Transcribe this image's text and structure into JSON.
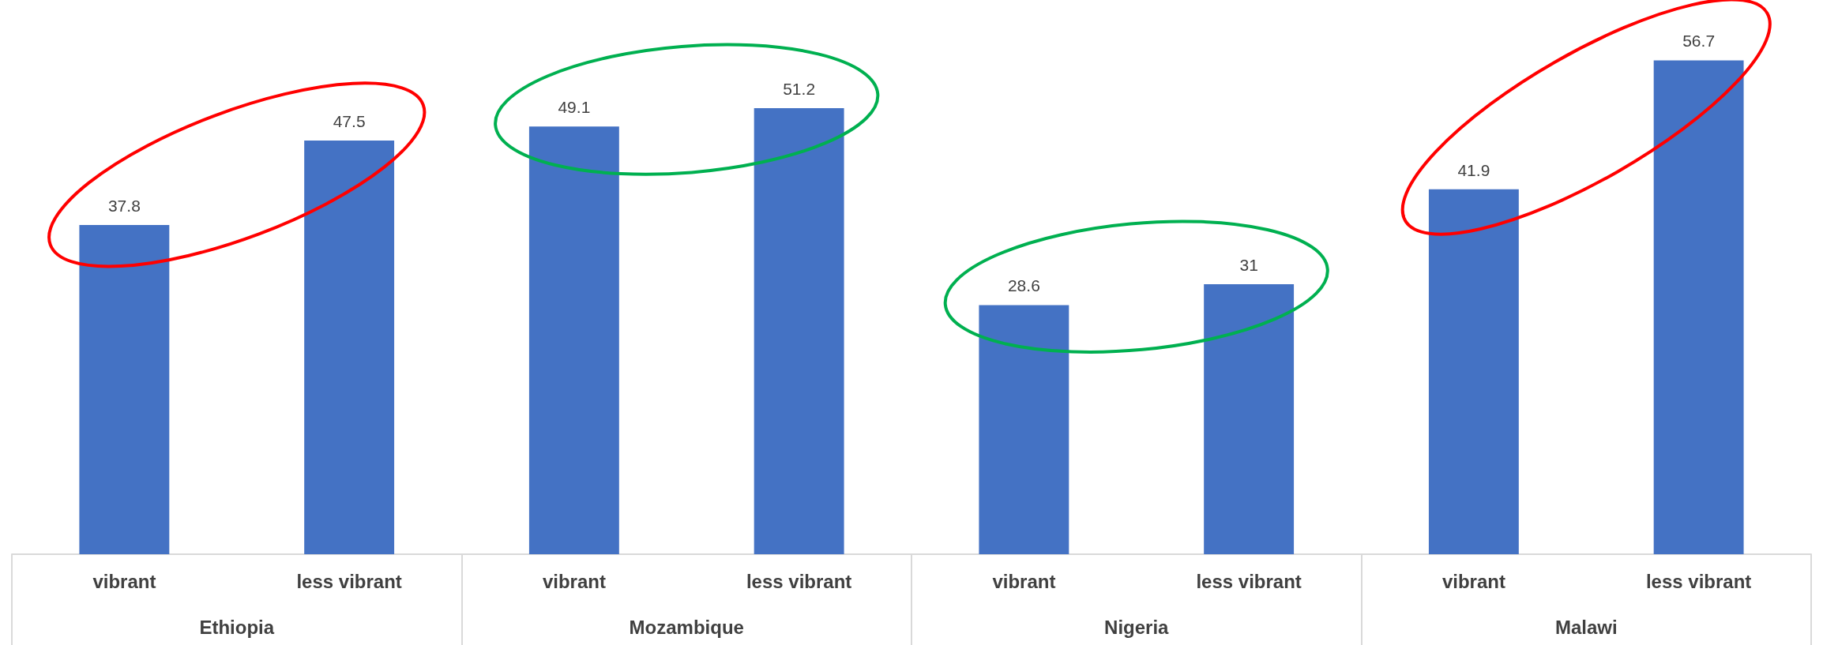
{
  "chart_data": {
    "type": "bar",
    "categories": [
      "vibrant",
      "less vibrant",
      "vibrant",
      "less vibrant",
      "vibrant",
      "less vibrant",
      "vibrant",
      "less vibrant"
    ],
    "values": [
      37.8,
      47.5,
      49.1,
      51.2,
      28.6,
      31,
      41.9,
      56.7
    ],
    "color": "#4472c4",
    "data_labels": true,
    "annotations": [
      "Ethiopia",
      "Mozambique",
      "Nigeria",
      "Malawi"
    ]
  }
}
